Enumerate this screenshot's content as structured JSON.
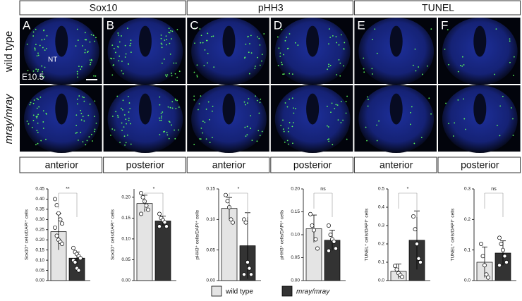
{
  "figure": {
    "headers": [
      "Sox10",
      "pHH3",
      "TUNEL"
    ],
    "rows": [
      "wild type",
      "mray/mray"
    ],
    "letters": [
      "A",
      "B",
      "C",
      "D",
      "E",
      "F"
    ],
    "regions": [
      "anterior",
      "posterior",
      "anterior",
      "posterior",
      "anterior",
      "posterior"
    ],
    "annotations": [
      "NT",
      "E10.5"
    ]
  },
  "legend": [
    {
      "name": "wild type",
      "color": "#e4e4e4"
    },
    {
      "name": "mray/mray",
      "color": "#333333"
    }
  ],
  "chart_data": [
    {
      "type": "bar",
      "y_label": "Sox10⁺ cells/DAPI⁺ cells",
      "values": [
        0.24,
        0.11
      ],
      "errors": [
        0.09,
        0.03
      ],
      "significance": "**",
      "points": [
        [
          0.4,
          0.37,
          0.33,
          0.3,
          0.28,
          0.26,
          0.22,
          0.2,
          0.19,
          0.18
        ],
        [
          0.16,
          0.14,
          0.13,
          0.12,
          0.11,
          0.1,
          0.09,
          0.06,
          0.05
        ]
      ],
      "ylim": [
        0,
        0.45
      ],
      "yticks": [
        {
          "value": 0,
          "label": "0.00"
        },
        0.05,
        {
          "value": 0.1,
          "label": "0.10"
        },
        0.15,
        {
          "value": 0.2,
          "label": "0.20"
        },
        0.25,
        {
          "value": 0.3,
          "label": "0.30"
        },
        0.35,
        {
          "value": 0.4,
          "label": "0.40"
        },
        0.45
      ]
    },
    {
      "type": "bar",
      "y_label": "Sox10⁺ cells/DAPI⁺ cells",
      "values": [
        0.185,
        0.143
      ],
      "errors": [
        0.02,
        0.012
      ],
      "significance": "*",
      "points": [
        [
          0.21,
          0.2,
          0.19,
          0.18,
          0.17,
          0.16
        ],
        [
          0.16,
          0.15,
          0.145,
          0.14,
          0.13,
          0.13
        ]
      ],
      "ylim": [
        0,
        0.22
      ],
      "yticks": [
        {
          "value": 0,
          "label": "0.00"
        },
        0.05,
        {
          "value": 0.1,
          "label": "0.10"
        },
        0.15,
        {
          "value": 0.2,
          "label": "0.20"
        }
      ]
    },
    {
      "type": "bar",
      "y_label": "pHH3⁺ cells/DAPI⁺ cells",
      "values": [
        0.118,
        0.057
      ],
      "errors": [
        0.018,
        0.054
      ],
      "significance": "*",
      "points": [
        [
          0.14,
          0.13,
          0.12,
          0.1,
          0.095
        ],
        [
          0.1,
          0.095,
          0.03,
          0.02,
          0.01,
          0.01
        ]
      ],
      "ylim": [
        0,
        0.15
      ],
      "yticks": [
        {
          "value": 0,
          "label": "0.00"
        },
        0.05,
        {
          "value": 0.1,
          "label": "0.10"
        },
        0.15
      ]
    },
    {
      "type": "bar",
      "y_label": "pHH3⁺ cells/DAPI⁺ cells",
      "values": [
        0.113,
        0.088
      ],
      "errors": [
        0.03,
        0.022
      ],
      "significance": "ns",
      "points": [
        [
          0.145,
          0.12,
          0.11,
          0.09,
          0.07
        ],
        [
          0.12,
          0.1,
          0.09,
          0.085,
          0.07,
          0.065
        ]
      ],
      "ylim": [
        0,
        0.2
      ],
      "yticks": [
        {
          "value": 0,
          "label": "0.00"
        },
        0.05,
        {
          "value": 0.1,
          "label": "0.10"
        },
        0.15,
        {
          "value": 0.2,
          "label": "0.20"
        }
      ]
    },
    {
      "type": "bar",
      "y_label": "TUNEL⁺ cells/DAPI⁺ cells",
      "values": [
        0.05,
        0.22
      ],
      "errors": [
        0.04,
        0.16
      ],
      "significance": "*",
      "points": [
        [
          0.08,
          0.06,
          0.04,
          0.03,
          0.02
        ],
        [
          0.35,
          0.28,
          0.2,
          0.12,
          0.1
        ]
      ],
      "ylim": [
        0,
        0.5
      ],
      "yticks": [
        {
          "value": 0,
          "label": "0.0"
        },
        0.1,
        0.2,
        0.3,
        0.4,
        0.5
      ]
    },
    {
      "type": "bar",
      "y_label": "TUNEL⁺ cells/DAPI⁺ cells",
      "values": [
        0.06,
        0.09
      ],
      "errors": [
        0.05,
        0.04
      ],
      "significance": "ns",
      "points": [
        [
          0.12,
          0.08,
          0.05,
          0.02,
          0.01
        ],
        [
          0.14,
          0.12,
          0.1,
          0.08,
          0.06,
          0.05
        ]
      ],
      "ylim": [
        0,
        0.3
      ],
      "yticks": [
        {
          "value": 0,
          "label": "0.0"
        },
        0.1,
        0.2,
        0.3
      ]
    }
  ]
}
